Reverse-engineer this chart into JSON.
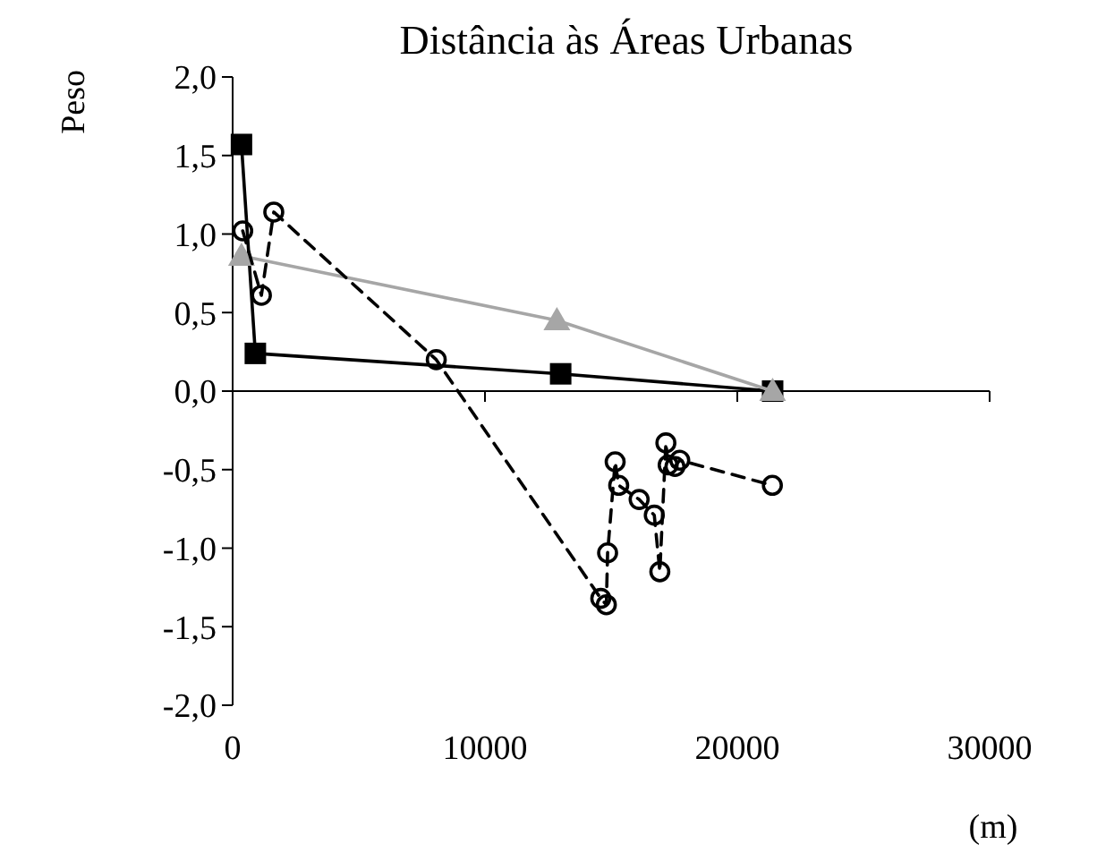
{
  "chart_data": {
    "type": "line",
    "title": "Distância às Áreas Urbanas",
    "xlabel": "(m)",
    "ylabel": "Peso",
    "xlim": [
      0,
      30000
    ],
    "xticks": [
      0,
      10000,
      20000,
      30000
    ],
    "ylim": [
      -2,
      2
    ],
    "yticks": [
      {
        "value": -2,
        "label": "-2,0"
      },
      {
        "value": -1.5,
        "label": "-1,5"
      },
      {
        "value": -1,
        "label": "-1,0"
      },
      {
        "value": -0.5,
        "label": "-0,5"
      },
      {
        "value": 0,
        "label": "0,0"
      },
      {
        "value": 0.5,
        "label": "0,5"
      },
      {
        "value": 1,
        "label": "1,0"
      },
      {
        "value": 1.5,
        "label": "1,5"
      },
      {
        "value": 2,
        "label": "2,0"
      }
    ],
    "series": [
      {
        "color": "#000000",
        "marker": "square",
        "line_style": "solid",
        "x": [
          350,
          900,
          13000,
          21400
        ],
        "values": [
          1.57,
          0.24,
          0.11,
          0
        ]
      },
      {
        "color": "#a6a6a6",
        "marker": "triangle",
        "line_style": "solid",
        "x": [
          350,
          12850,
          21400
        ],
        "values": [
          0.86,
          0.45,
          0
        ]
      },
      {
        "color": "#000000",
        "marker": "circle",
        "line_style": "dashed",
        "x": [
          400,
          1140,
          1630,
          8070,
          14590,
          14810,
          14860,
          15160,
          15300,
          16110,
          16710,
          16930,
          17170,
          17260,
          17530,
          17720,
          21390
        ],
        "values": [
          1.02,
          0.61,
          1.14,
          0.2,
          -1.32,
          -1.36,
          -1.03,
          -0.45,
          -0.6,
          -0.69,
          -0.79,
          -1.15,
          -0.33,
          -0.47,
          -0.48,
          -0.44,
          -0.6
        ]
      }
    ]
  }
}
